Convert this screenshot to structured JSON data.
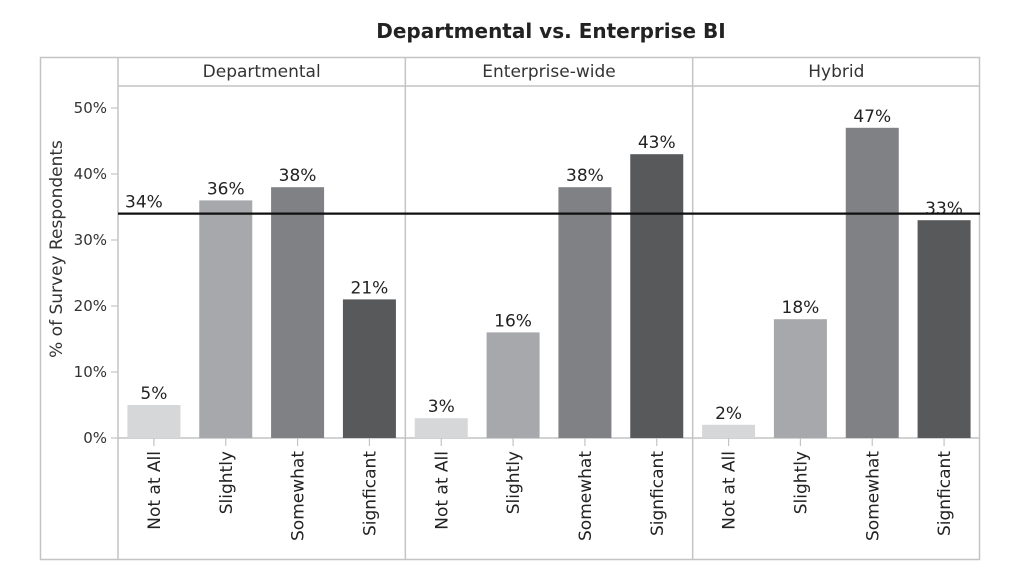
{
  "chart_data": {
    "type": "bar",
    "title": "Departmental vs. Enterprise BI",
    "ylabel": "% of Survey Respondents",
    "ylim": [
      0,
      50
    ],
    "yticks": [
      "0%",
      "10%",
      "20%",
      "30%",
      "40%",
      "50%"
    ],
    "categories": [
      "Not at All",
      "Slightly",
      "Somewhat",
      "Signficant"
    ],
    "bar_colors": [
      "#d6d7d9",
      "#a7a8ab",
      "#808184",
      "#58595b"
    ],
    "reference_line": {
      "value": 34,
      "label": "34%"
    },
    "panels": [
      {
        "name": "Departmental",
        "values": [
          5,
          36,
          38,
          21
        ],
        "labels": [
          "5%",
          "36%",
          "38%",
          "21%"
        ]
      },
      {
        "name": "Enterprise-wide",
        "values": [
          3,
          16,
          38,
          43
        ],
        "labels": [
          "3%",
          "16%",
          "38%",
          "43%"
        ]
      },
      {
        "name": "Hybrid",
        "values": [
          2,
          18,
          47,
          33
        ],
        "labels": [
          "2%",
          "18%",
          "47%",
          "33%"
        ]
      }
    ]
  }
}
